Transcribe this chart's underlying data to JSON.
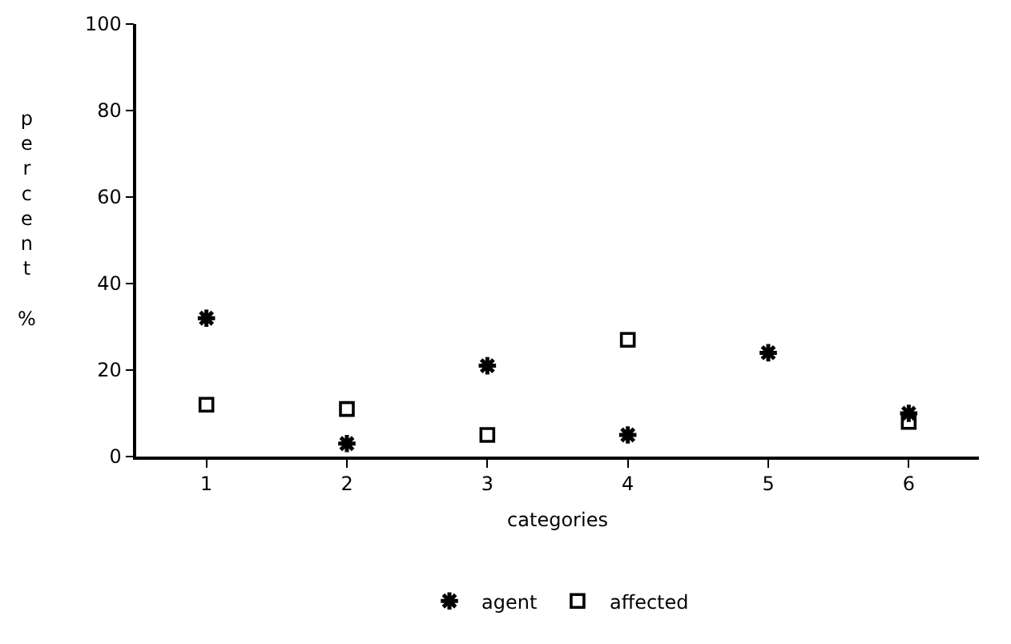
{
  "chart_data": {
    "type": "scatter",
    "xlabel": "categories",
    "ylabel": "percent %",
    "categories": [
      "1",
      "2",
      "3",
      "4",
      "5",
      "6"
    ],
    "ylim": [
      0,
      100
    ],
    "yticks": [
      0,
      20,
      40,
      60,
      80,
      100
    ],
    "grid": false,
    "legend": "bottom",
    "series": [
      {
        "name": "agent",
        "color": "#000000",
        "marker": "cross",
        "values": [
          32,
          3,
          21,
          5,
          24,
          10
        ]
      },
      {
        "name": "affected",
        "color": "#000000",
        "marker": "square",
        "values": [
          12,
          11,
          5,
          27,
          null,
          8
        ]
      }
    ]
  }
}
